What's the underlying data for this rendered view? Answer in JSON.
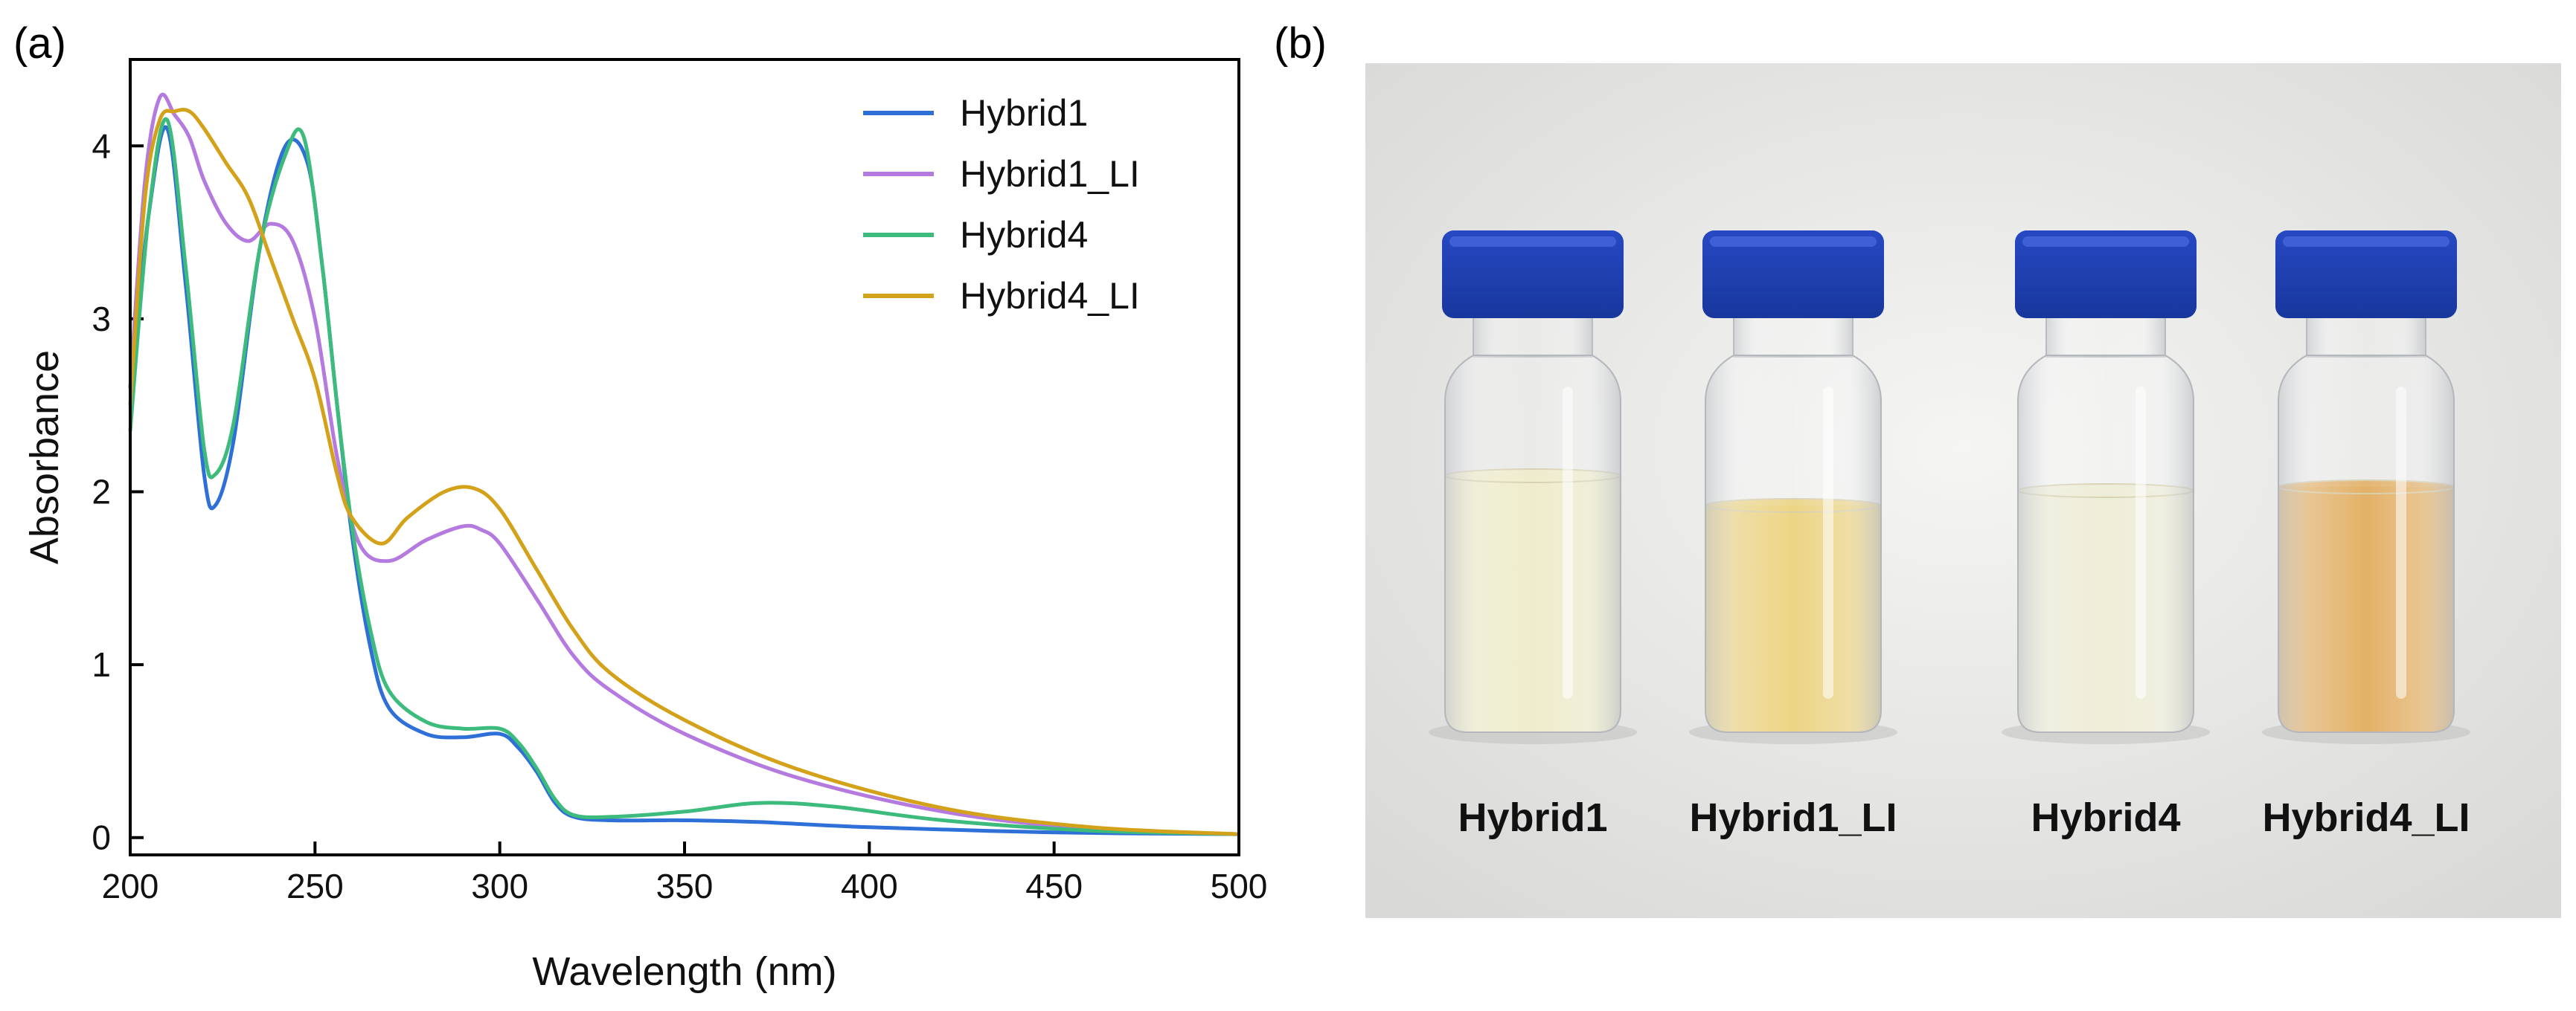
{
  "panel_a_label": "(a)",
  "panel_b_label": "(b)",
  "chart_data": {
    "type": "line",
    "title": "",
    "xlabel": "Wavelength (nm)",
    "ylabel": "Absorbance",
    "xlim": [
      200,
      500
    ],
    "ylim": [
      -0.1,
      4.5
    ],
    "xticks": [
      200,
      250,
      300,
      350,
      400,
      450,
      500
    ],
    "yticks": [
      0,
      1,
      2,
      3,
      4
    ],
    "legend_position": "top-right",
    "series": [
      {
        "name": "Hybrid1",
        "color": "#2e6fd8",
        "x": [
          200,
          205,
          210,
          215,
          220,
          223,
          228,
          235,
          242,
          248,
          252,
          256,
          260,
          265,
          270,
          280,
          290,
          300,
          305,
          310,
          315,
          320,
          330,
          350,
          370,
          400,
          450,
          500
        ],
        "y": [
          2.6,
          3.6,
          4.1,
          3.2,
          2.1,
          1.92,
          2.3,
          3.4,
          4.0,
          3.9,
          3.3,
          2.5,
          1.75,
          1.1,
          0.75,
          0.6,
          0.58,
          0.6,
          0.52,
          0.38,
          0.2,
          0.12,
          0.1,
          0.1,
          0.09,
          0.06,
          0.03,
          0.02
        ]
      },
      {
        "name": "Hybrid1_LI",
        "color": "#b57ae0",
        "x": [
          200,
          204,
          208,
          212,
          216,
          220,
          226,
          232,
          238,
          244,
          250,
          256,
          262,
          270,
          280,
          290,
          295,
          300,
          310,
          320,
          330,
          350,
          380,
          420,
          460,
          500
        ],
        "y": [
          2.6,
          3.8,
          4.28,
          4.18,
          4.05,
          3.8,
          3.55,
          3.45,
          3.55,
          3.45,
          3.0,
          2.2,
          1.7,
          1.6,
          1.72,
          1.8,
          1.78,
          1.7,
          1.38,
          1.05,
          0.85,
          0.6,
          0.35,
          0.15,
          0.05,
          0.02
        ]
      },
      {
        "name": "Hybrid4",
        "color": "#3dbb7d",
        "x": [
          200,
          205,
          210,
          215,
          220,
          223,
          228,
          235,
          242,
          247,
          252,
          256,
          260,
          265,
          270,
          280,
          290,
          300,
          305,
          310,
          315,
          320,
          330,
          350,
          370,
          390,
          420,
          460,
          500
        ],
        "y": [
          2.35,
          3.6,
          4.15,
          3.3,
          2.25,
          2.1,
          2.4,
          3.4,
          3.95,
          4.05,
          3.3,
          2.5,
          1.8,
          1.2,
          0.85,
          0.67,
          0.63,
          0.63,
          0.55,
          0.4,
          0.22,
          0.13,
          0.12,
          0.15,
          0.2,
          0.18,
          0.1,
          0.04,
          0.02
        ]
      },
      {
        "name": "Hybrid4_LI",
        "color": "#d4a21a",
        "x": [
          200,
          204,
          208,
          212,
          216,
          220,
          226,
          232,
          238,
          244,
          250,
          256,
          260,
          268,
          275,
          285,
          293,
          300,
          310,
          320,
          330,
          350,
          380,
          420,
          460,
          500
        ],
        "y": [
          2.5,
          3.7,
          4.15,
          4.2,
          4.2,
          4.1,
          3.9,
          3.7,
          3.35,
          3.0,
          2.65,
          2.1,
          1.85,
          1.7,
          1.85,
          2.0,
          2.02,
          1.9,
          1.55,
          1.2,
          0.95,
          0.68,
          0.4,
          0.17,
          0.06,
          0.02
        ]
      }
    ]
  },
  "photo": {
    "vials": [
      {
        "label": "Hybrid1",
        "liquid_color": "#ece9c2"
      },
      {
        "label": "Hybrid1_LI",
        "liquid_color": "#e9cd6f"
      },
      {
        "label": "Hybrid4",
        "liquid_color": "#ebead0"
      },
      {
        "label": "Hybrid4_LI",
        "liquid_color": "#dea34c"
      }
    ],
    "cap_color": "#1f3fb1"
  }
}
